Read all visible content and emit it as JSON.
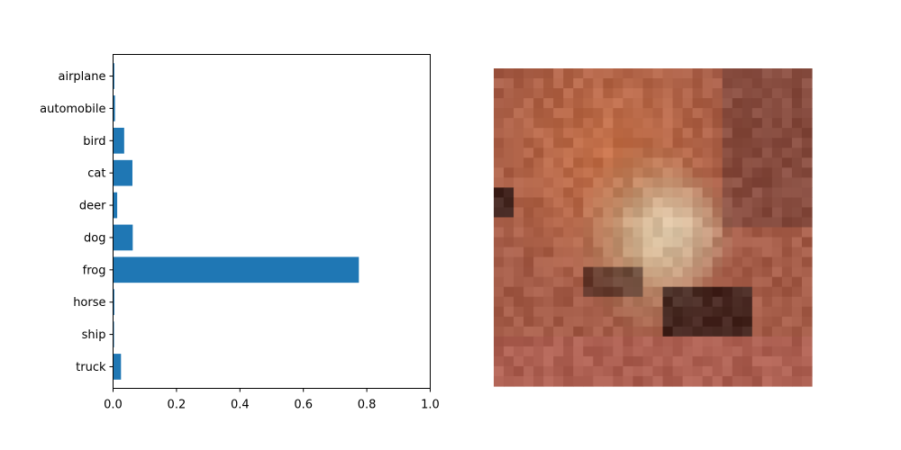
{
  "chart_data": {
    "type": "bar",
    "orientation": "horizontal",
    "categories": [
      "airplane",
      "automobile",
      "bird",
      "cat",
      "deer",
      "dog",
      "frog",
      "horse",
      "ship",
      "truck"
    ],
    "values": [
      0.004,
      0.006,
      0.035,
      0.061,
      0.013,
      0.062,
      0.775,
      0.004,
      0.003,
      0.025
    ],
    "xlim": [
      0.0,
      1.0
    ],
    "xticks": [
      "0.0",
      "0.2",
      "0.4",
      "0.6",
      "0.8",
      "1.0"
    ],
    "xtick_values": [
      0.0,
      0.2,
      0.4,
      0.6,
      0.8,
      1.0
    ],
    "title": "",
    "xlabel": "",
    "ylabel": "",
    "bar_color": "#1f77b4",
    "grid": false,
    "legend": "none"
  },
  "image_panel": {
    "description_icon": "pixelated-frog-photo",
    "grid_size": 32
  }
}
